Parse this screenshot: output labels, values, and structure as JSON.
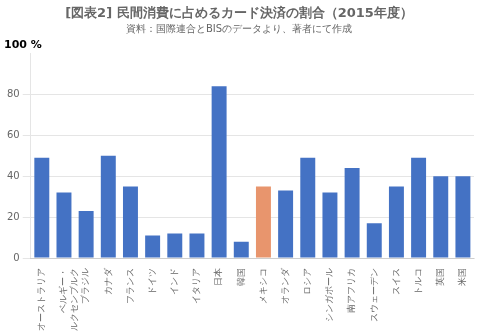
{
  "chart_data": {
    "type": "bar",
    "title": "[図表2] 民間消費に占めるカード決済の割合（2015年度）",
    "subtitle": "資料：国際連合とBISのデータより、著者にて作成",
    "ylabel": "100 %",
    "categories": [
      "オーストラリア",
      "ベルギー・\nルクセンブルク",
      "ブラジル",
      "カナダ",
      "フランス",
      "ドイツ",
      "インド",
      "イタリア",
      "日本",
      "韓国",
      "メキシコ",
      "オランダ",
      "ロシア",
      "シンガポール",
      "南アフリカ",
      "スウェーデン",
      "スイス",
      "トルコ",
      "英国",
      "米国"
    ],
    "values": [
      49,
      32,
      23,
      50,
      35,
      11,
      12,
      12,
      84,
      8,
      35,
      33,
      49,
      32,
      44,
      17,
      35,
      49,
      40,
      40
    ],
    "colors": [
      "#4472C4",
      "#4472C4",
      "#4472C4",
      "#4472C4",
      "#4472C4",
      "#4472C4",
      "#4472C4",
      "#4472C4",
      "#4472C4",
      "#4472C4",
      "#E8956D",
      "#4472C4",
      "#4472C4",
      "#4472C4",
      "#4472C4",
      "#4472C4",
      "#4472C4",
      "#4472C4",
      "#4472C4",
      "#4472C4"
    ],
    "ylim": [
      0,
      100
    ],
    "yticks": [
      0,
      20,
      40,
      60,
      80
    ],
    "grid": true
  }
}
